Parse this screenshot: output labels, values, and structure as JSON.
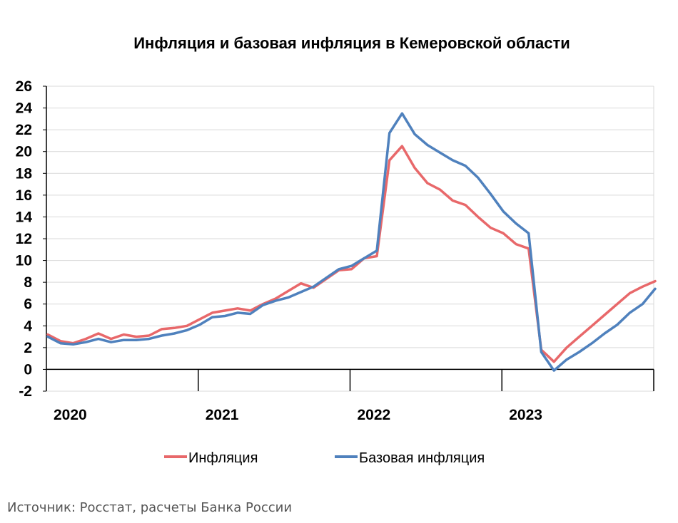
{
  "chart_data": {
    "type": "line",
    "title": "Инфляция и базовая инфляция в Кемеровской области",
    "xlabel": "",
    "ylabel": "",
    "ylim": [
      -2,
      26
    ],
    "yticks": [
      "26",
      "24",
      "22",
      "20",
      "18",
      "16",
      "14",
      "12",
      "10",
      "8",
      "6",
      "4",
      "2",
      "0",
      "-2"
    ],
    "xticks": [
      "2020",
      "2021",
      "2022",
      "2023"
    ],
    "grid": "horizontal",
    "legend": "bottom",
    "x_unit": "months from January 2020",
    "series": [
      {
        "name": "Инфляция",
        "color": "#e8686a",
        "values": [
          3.2,
          2.6,
          2.4,
          2.8,
          3.3,
          2.8,
          3.2,
          3.0,
          3.1,
          3.7,
          3.8,
          4.0,
          4.6,
          5.2,
          5.4,
          5.6,
          5.4,
          6.0,
          6.5,
          7.2,
          7.9,
          7.5,
          8.3,
          9.1,
          9.2,
          10.2,
          10.4,
          19.2,
          20.5,
          18.5,
          17.1,
          16.5,
          15.5,
          15.1,
          14.0,
          13.0,
          12.5,
          11.5,
          11.1,
          1.8,
          0.7,
          2.0,
          3.0,
          4.0,
          5.0,
          6.0,
          7.0,
          7.6,
          8.1
        ]
      },
      {
        "name": "Базовая инфляция",
        "color": "#4f81bd",
        "values": [
          3.0,
          2.4,
          2.3,
          2.5,
          2.8,
          2.5,
          2.7,
          2.7,
          2.8,
          3.1,
          3.3,
          3.6,
          4.1,
          4.8,
          4.9,
          5.2,
          5.1,
          5.9,
          6.3,
          6.6,
          7.1,
          7.6,
          8.4,
          9.2,
          9.5,
          10.2,
          10.9,
          21.7,
          23.5,
          21.6,
          20.6,
          19.9,
          19.2,
          18.7,
          17.6,
          16.1,
          14.5,
          13.4,
          12.5,
          1.6,
          -0.1,
          0.9,
          1.6,
          2.4,
          3.3,
          4.1,
          5.2,
          6.0,
          7.4
        ]
      }
    ]
  },
  "source": "Источник: Росстат, расчеты Банка России"
}
